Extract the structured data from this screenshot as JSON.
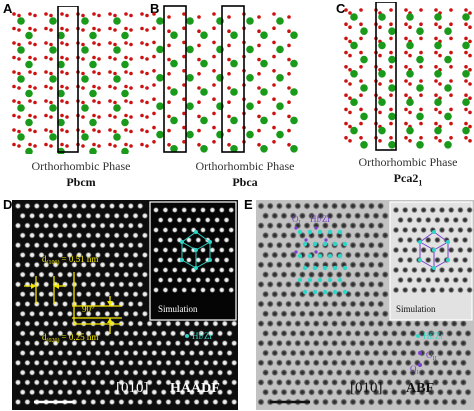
{
  "panels_top": [
    {
      "label": "A",
      "phase": "Orthorhombic Phase",
      "space_group": "Pbcm",
      "space_group_sub": ""
    },
    {
      "label": "B",
      "phase": "Orthorhombic Phase",
      "space_group": "Pbca",
      "space_group_sub": ""
    },
    {
      "label": "C",
      "phase": "Orthorhombic Phase",
      "space_group": "Pca2",
      "space_group_sub": "1"
    }
  ],
  "panel_d": {
    "label": "D",
    "d100_prefix": "d",
    "d100_sub": "(100)",
    "d100_value": "= 0.51 nm",
    "d020_prefix": "d",
    "d020_sub": "(020)",
    "d020_value": "= 0.25 nm",
    "angle": "90°",
    "simulation": "Simulation",
    "species": "Hf/Zr",
    "zone_axis": "[010]",
    "mode": "HAADF"
  },
  "panel_e": {
    "label": "E",
    "o_i": "O",
    "o_i_sub": "I",
    "hfzr_top": "Hf/Zr",
    "simulation": "Simulation",
    "species": "Hf/Zr",
    "o_ii": "O",
    "o_ii_sub": "II",
    "o_i_bottom": "O",
    "o_i_bottom_sub": "I",
    "zone_axis": "[010]",
    "mode": "ABF"
  },
  "colors": {
    "hf_zr_atom": "#1a9a1a",
    "oxygen_atom": "#cc1111",
    "annotation_yellow": "#f2e600",
    "annotation_cyan": "#2fd6c8",
    "annotation_purple": "#7a3fd0"
  }
}
